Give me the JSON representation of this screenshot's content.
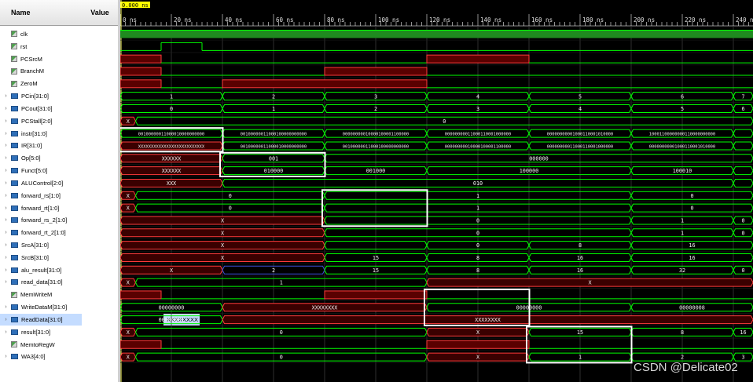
{
  "header": {
    "name_col": "Name",
    "value_col": "Value",
    "cursor_time": "0.000 ns",
    "time_ticks": [
      "0 ns",
      "20 ns",
      "40 ns",
      "60 ns",
      "80 ns",
      "100 ns",
      "120 ns",
      "140 ns",
      "160 ns",
      "180 ns",
      "200 ns",
      "220 ns",
      "240 n"
    ]
  },
  "signals": [
    {
      "name": "clk",
      "value": "1",
      "kind": "bit",
      "expand": false
    },
    {
      "name": "rst",
      "value": "0",
      "kind": "bit",
      "expand": false
    },
    {
      "name": "PCSrcM",
      "value": "X",
      "kind": "bit",
      "expand": false
    },
    {
      "name": "BranchM",
      "value": "X",
      "kind": "bit",
      "expand": false
    },
    {
      "name": "ZeroM",
      "value": "X",
      "kind": "bit",
      "expand": false
    },
    {
      "name": "PCin[31:0]",
      "value": "1",
      "kind": "bus",
      "expand": true
    },
    {
      "name": "PCout[31:0]",
      "value": "0",
      "kind": "bus",
      "expand": true
    },
    {
      "name": "PCStall[2:0]",
      "value": "X",
      "kind": "bus",
      "expand": true
    },
    {
      "name": "instr[31:0]",
      "value": "001000000",
      "kind": "bus",
      "expand": true
    },
    {
      "name": "IR[31:0]",
      "value": "XXXXXXXXX",
      "kind": "bus",
      "expand": true
    },
    {
      "name": "Op[5:0]",
      "value": "XXXXXX",
      "kind": "bus",
      "expand": true
    },
    {
      "name": "Funct[5:0]",
      "value": "XXXXXX",
      "kind": "bus",
      "expand": true
    },
    {
      "name": "ALUControl[2:0]",
      "value": "XXX",
      "kind": "bus",
      "expand": true
    },
    {
      "name": "forward_rs[1:0]",
      "value": "X",
      "kind": "bus",
      "expand": true
    },
    {
      "name": "forward_rt[1:0]",
      "value": "X",
      "kind": "bus",
      "expand": true
    },
    {
      "name": "forward_rs_2[1:0]",
      "value": "X",
      "kind": "bus",
      "expand": true
    },
    {
      "name": "forward_rt_2[1:0]",
      "value": "X",
      "kind": "bus",
      "expand": true
    },
    {
      "name": "SrcA[31:0]",
      "value": "X",
      "kind": "bus",
      "expand": true
    },
    {
      "name": "SrcB[31:0]",
      "value": "X",
      "kind": "bus",
      "expand": true
    },
    {
      "name": "alu_result[31:0]",
      "value": "X",
      "kind": "bus",
      "expand": true
    },
    {
      "name": "read_data[31:0]",
      "value": "X",
      "kind": "bus",
      "expand": true
    },
    {
      "name": "MemWriteM",
      "value": "X",
      "kind": "bit",
      "expand": false
    },
    {
      "name": "WriteDataM[31:0]",
      "value": "XXXXXXXX",
      "kind": "bus",
      "expand": true
    },
    {
      "name": "ReadData[31:0]",
      "value": "XXXXXXXX",
      "kind": "bus",
      "expand": true,
      "selected": true
    },
    {
      "name": "result[31:0]",
      "value": "X",
      "kind": "bus",
      "expand": true
    },
    {
      "name": "MemtoRegW",
      "value": "X",
      "kind": "bit",
      "expand": false
    },
    {
      "name": "WA3[4:0]",
      "value": "X",
      "kind": "bus",
      "expand": true
    }
  ],
  "waves": [
    {
      "type": "bit",
      "segs": [
        [
          0,
          260,
          "1"
        ]
      ]
    },
    {
      "type": "bit",
      "segs": [
        [
          0,
          16,
          "0"
        ],
        [
          16,
          32,
          "1"
        ],
        [
          32,
          260,
          "0"
        ]
      ]
    },
    {
      "type": "bit",
      "segs": [
        [
          0,
          16,
          "X"
        ],
        [
          16,
          120,
          "0"
        ],
        [
          120,
          160,
          "X"
        ],
        [
          160,
          260,
          "0"
        ]
      ]
    },
    {
      "type": "bit",
      "segs": [
        [
          0,
          16,
          "X"
        ],
        [
          16,
          80,
          "0"
        ],
        [
          80,
          120,
          "X"
        ],
        [
          120,
          260,
          "0"
        ]
      ]
    },
    {
      "type": "bit",
      "segs": [
        [
          0,
          16,
          "X"
        ],
        [
          16,
          40,
          "0"
        ],
        [
          40,
          120,
          "X"
        ],
        [
          120,
          260,
          "0"
        ]
      ]
    },
    {
      "type": "bus",
      "segs": [
        [
          0,
          40,
          "1"
        ],
        [
          40,
          80,
          "2"
        ],
        [
          80,
          120,
          "3"
        ],
        [
          120,
          160,
          "4"
        ],
        [
          160,
          200,
          "5"
        ],
        [
          200,
          240,
          "6"
        ],
        [
          240,
          260,
          "7"
        ]
      ]
    },
    {
      "type": "bus",
      "segs": [
        [
          0,
          40,
          "0"
        ],
        [
          40,
          80,
          "1"
        ],
        [
          80,
          120,
          "2"
        ],
        [
          120,
          160,
          "3"
        ],
        [
          160,
          200,
          "4"
        ],
        [
          200,
          240,
          "5"
        ],
        [
          240,
          260,
          "6"
        ]
      ]
    },
    {
      "type": "bus",
      "segs": [
        [
          0,
          6,
          "X",
          "x"
        ],
        [
          6,
          260,
          "0"
        ]
      ]
    },
    {
      "type": "bus",
      "segs": [
        [
          0,
          40,
          "00100000011000010000000000"
        ],
        [
          40,
          80,
          "00100000011000100000000000"
        ],
        [
          80,
          120,
          "00000000010000100001100000"
        ],
        [
          120,
          160,
          "00000000011000110001000000"
        ],
        [
          160,
          200,
          "00000000001000110001010000"
        ],
        [
          200,
          240,
          "10001100000000110000000000"
        ],
        [
          240,
          260,
          ""
        ]
      ]
    },
    {
      "type": "bus",
      "segs": [
        [
          0,
          40,
          "XXXXXXXXXXXXXXXXXXXXXXXXXX",
          "x"
        ],
        [
          40,
          80,
          "00100000011000010000000000"
        ],
        [
          80,
          120,
          "00100000011000100000000000"
        ],
        [
          120,
          160,
          "00000000010000100001100000"
        ],
        [
          160,
          200,
          "00000000011000110001000000"
        ],
        [
          200,
          240,
          "00000000001000110001010000"
        ],
        [
          240,
          260,
          ""
        ]
      ]
    },
    {
      "type": "bus",
      "segs": [
        [
          0,
          40,
          "XXXXXX",
          "x"
        ],
        [
          40,
          80,
          "001"
        ],
        [
          80,
          260,
          "000000"
        ]
      ]
    },
    {
      "type": "bus",
      "segs": [
        [
          0,
          40,
          "XXXXXX",
          "x"
        ],
        [
          40,
          80,
          "010000"
        ],
        [
          80,
          120,
          "001000"
        ],
        [
          120,
          200,
          "100000"
        ],
        [
          200,
          240,
          "100010"
        ],
        [
          240,
          260,
          ""
        ]
      ]
    },
    {
      "type": "bus",
      "segs": [
        [
          0,
          40,
          "XXX",
          "x"
        ],
        [
          40,
          240,
          "010"
        ],
        [
          240,
          260,
          ""
        ]
      ]
    },
    {
      "type": "bus",
      "segs": [
        [
          0,
          6,
          "X",
          "x"
        ],
        [
          6,
          80,
          "0"
        ],
        [
          80,
          200,
          "1"
        ],
        [
          200,
          260,
          "0"
        ]
      ]
    },
    {
      "type": "bus",
      "segs": [
        [
          0,
          6,
          "X",
          "x"
        ],
        [
          6,
          80,
          "0"
        ],
        [
          80,
          200,
          "1"
        ],
        [
          200,
          260,
          "0"
        ]
      ]
    },
    {
      "type": "bus",
      "segs": [
        [
          0,
          80,
          "X",
          "x"
        ],
        [
          80,
          200,
          "0"
        ],
        [
          200,
          240,
          "1"
        ],
        [
          240,
          260,
          "0"
        ]
      ]
    },
    {
      "type": "bus",
      "segs": [
        [
          0,
          80,
          "X",
          "x"
        ],
        [
          80,
          200,
          "0"
        ],
        [
          200,
          240,
          "1"
        ],
        [
          240,
          260,
          "0"
        ]
      ]
    },
    {
      "type": "bus",
      "segs": [
        [
          0,
          80,
          "X",
          "x"
        ],
        [
          80,
          120,
          ""
        ],
        [
          120,
          160,
          "0"
        ],
        [
          160,
          200,
          "8"
        ],
        [
          200,
          260,
          "16"
        ]
      ]
    },
    {
      "type": "bus",
      "segs": [
        [
          0,
          80,
          "X",
          "x"
        ],
        [
          80,
          120,
          "15"
        ],
        [
          120,
          160,
          "8"
        ],
        [
          160,
          200,
          "16"
        ],
        [
          200,
          260,
          "16"
        ]
      ]
    },
    {
      "type": "bus",
      "segs": [
        [
          0,
          40,
          "X",
          "x"
        ],
        [
          40,
          80,
          "2",
          "b"
        ],
        [
          80,
          120,
          "15"
        ],
        [
          120,
          160,
          "8"
        ],
        [
          160,
          200,
          "16"
        ],
        [
          200,
          240,
          "32"
        ],
        [
          240,
          260,
          "0"
        ]
      ]
    },
    {
      "type": "bus",
      "segs": [
        [
          0,
          6,
          "X",
          "x"
        ],
        [
          6,
          120,
          "1"
        ],
        [
          120,
          260,
          "X",
          "x"
        ]
      ]
    },
    {
      "type": "bit",
      "segs": [
        [
          0,
          16,
          "X"
        ],
        [
          16,
          80,
          "0"
        ],
        [
          80,
          120,
          "X"
        ],
        [
          120,
          260,
          "0"
        ]
      ]
    },
    {
      "type": "bus",
      "segs": [
        [
          0,
          40,
          "00000000"
        ],
        [
          40,
          120,
          "XXXXXXXX",
          "x"
        ],
        [
          120,
          200,
          "00000000"
        ],
        [
          200,
          260,
          "00000008"
        ]
      ]
    },
    {
      "type": "bus",
      "segs": [
        [
          0,
          40,
          "00000001"
        ],
        [
          40,
          260,
          "XXXXXXXX",
          "x"
        ]
      ]
    },
    {
      "type": "bus",
      "segs": [
        [
          0,
          6,
          "X",
          "x"
        ],
        [
          6,
          120,
          "0"
        ],
        [
          120,
          160,
          "X",
          "x"
        ],
        [
          160,
          200,
          "15"
        ],
        [
          200,
          240,
          "8"
        ],
        [
          240,
          260,
          "16"
        ]
      ]
    },
    {
      "type": "bit",
      "segs": [
        [
          0,
          16,
          "X"
        ],
        [
          16,
          120,
          "0"
        ],
        [
          120,
          160,
          "X"
        ],
        [
          160,
          260,
          "0"
        ]
      ]
    },
    {
      "type": "bus",
      "segs": [
        [
          0,
          6,
          "X",
          "x"
        ],
        [
          6,
          120,
          "0"
        ],
        [
          120,
          160,
          "X",
          "x"
        ],
        [
          160,
          200,
          "1"
        ],
        [
          200,
          240,
          "2"
        ],
        [
          240,
          260,
          "3"
        ]
      ]
    }
  ],
  "highlight_boxes": [
    {
      "t0": 0,
      "t1": 40,
      "r0": 8,
      "r1": 9
    },
    {
      "t0": 40,
      "t1": 80,
      "r0": 10,
      "r1": 11
    },
    {
      "t0": 80,
      "t1": 120,
      "r0": 13,
      "r1": 15
    },
    {
      "t0": 120,
      "t1": 160,
      "r0": 21,
      "r1": 23
    },
    {
      "t0": 160,
      "t1": 200,
      "r0": 24,
      "r1": 26
    }
  ],
  "colors": {
    "wave": "#00ff00",
    "x_state": "#ff3b3b",
    "bus_blue": "#3a4fd8",
    "grid": "#3a3a3a",
    "cursor_bg": "#ffff00",
    "box": "#ffffff",
    "clk_fill": "#1f8a1f"
  },
  "watermark": "CSDN @Delicate02"
}
